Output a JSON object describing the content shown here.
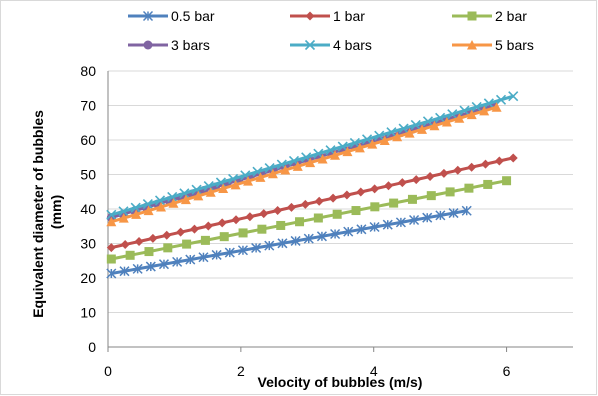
{
  "chart_data": {
    "type": "line",
    "title": "",
    "xlabel": "Velocity of bubbles (m/s)",
    "ylabel": "Equivalent diameter of bubbles (mm)",
    "ylabel_lines": [
      "Equivalent diameter of bubbles",
      "(mm)"
    ],
    "xlim": [
      0,
      7
    ],
    "ylim": [
      0,
      80
    ],
    "xticks": [
      0,
      2,
      4,
      6
    ],
    "yticks": [
      0,
      10,
      20,
      30,
      40,
      50,
      60,
      70,
      80
    ],
    "grid": "horizontal",
    "legend_position": "top",
    "series": [
      {
        "name": "0.5 bar",
        "color": "#4f81bd",
        "marker": "star",
        "x_start": 0.05,
        "x_end": 5.4,
        "y_start": 21.3,
        "y_end": 39.5,
        "points": 28
      },
      {
        "name": "1 bar",
        "color": "#c0504d",
        "marker": "diamond",
        "x_start": 0.05,
        "x_end": 6.1,
        "y_start": 28.8,
        "y_end": 54.8,
        "points": 30
      },
      {
        "name": "2 bar",
        "color": "#9bbb59",
        "marker": "square",
        "x_start": 0.05,
        "x_end": 6.0,
        "y_start": 25.5,
        "y_end": 48.2,
        "points": 22
      },
      {
        "name": "3 bars",
        "color": "#8064a2",
        "marker": "circle",
        "x_start": 0.05,
        "x_end": 5.8,
        "y_start": 37.5,
        "y_end": 70.0,
        "points": 34
      },
      {
        "name": "4 bars",
        "color": "#4bacc6",
        "marker": "x",
        "x_start": 0.05,
        "x_end": 6.1,
        "y_start": 38.3,
        "y_end": 72.7,
        "points": 34
      },
      {
        "name": "5 bars",
        "color": "#f79646",
        "marker": "triangle",
        "x_start": 0.05,
        "x_end": 5.85,
        "y_start": 36.3,
        "y_end": 69.5,
        "points": 32
      }
    ]
  }
}
